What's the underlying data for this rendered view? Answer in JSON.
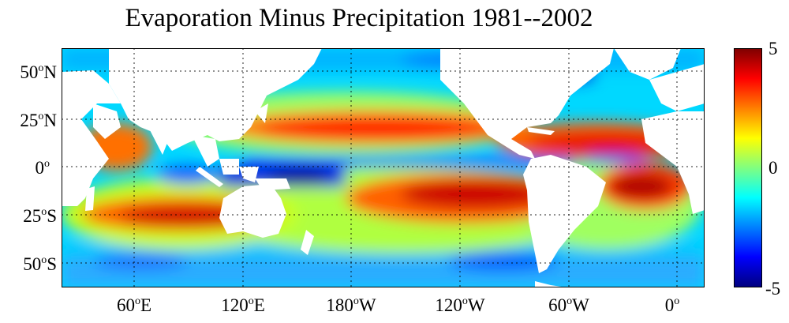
{
  "title": "Evaporation Minus Precipitation 1981--2002",
  "y_ticks": [
    {
      "deg": "50",
      "hem": "N",
      "lat": 50
    },
    {
      "deg": "25",
      "hem": "N",
      "lat": 25
    },
    {
      "deg": "0",
      "hem": "",
      "lat": 0
    },
    {
      "deg": "25",
      "hem": "S",
      "lat": -25
    },
    {
      "deg": "50",
      "hem": "S",
      "lat": -50
    }
  ],
  "x_ticks": [
    {
      "deg": "60",
      "hem": "E",
      "lon": 60
    },
    {
      "deg": "120",
      "hem": "E",
      "lon": 120
    },
    {
      "deg": "180",
      "hem": "W",
      "lon": 180
    },
    {
      "deg": "120",
      "hem": "W",
      "lon": 240
    },
    {
      "deg": "60",
      "hem": "W",
      "lon": 300
    },
    {
      "deg": "0",
      "hem": "",
      "lon": 360
    }
  ],
  "colorbar": {
    "max_label": "5",
    "mid_label": "0",
    "min_label": "-5",
    "colors": [
      "#800000",
      "#ff0000",
      "#ff8000",
      "#ffff00",
      "#80ff80",
      "#00ffff",
      "#0080ff",
      "#0000ff",
      "#000080"
    ]
  },
  "map_extent": {
    "lon_min": 20,
    "lon_max": 375,
    "lat_min": -63,
    "lat_max": 62
  },
  "grid": true,
  "land_color": "#ffffff",
  "background_color": "#00d8ff"
}
